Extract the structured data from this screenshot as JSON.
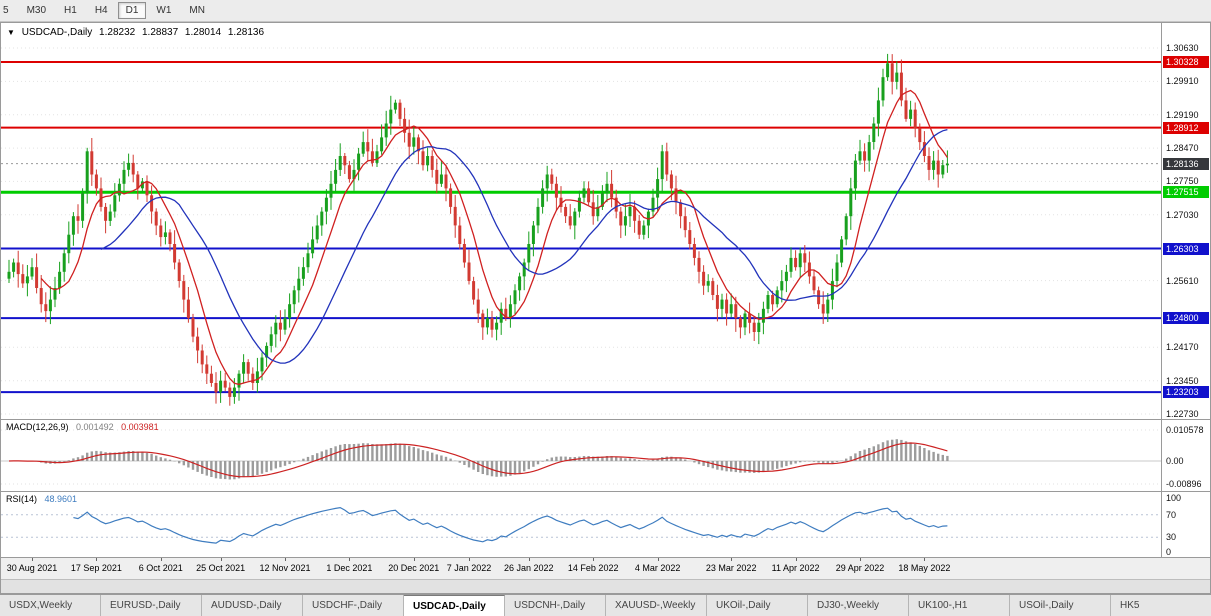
{
  "window": {
    "title_symbol": "USDCAD-,Daily",
    "open": "1.28232",
    "high": "1.28837",
    "low": "1.28014",
    "close": "1.28136"
  },
  "toolbar": {
    "timeframes": [
      "5",
      "M30",
      "H1",
      "H4",
      "D1",
      "W1",
      "MN"
    ],
    "active": "D1"
  },
  "tabs": {
    "items": [
      "USDX,Weekly",
      "EURUSD-,Daily",
      "AUDUSD-,Daily",
      "USDCHF-,Daily",
      "USDCAD-,Daily",
      "USDCNH-,Daily",
      "XAUUSD-,Weekly",
      "UKOil-,Daily",
      "DJ30-,Weekly",
      "UK100-,H1",
      "USOil-,Daily",
      "HK5"
    ],
    "selected_index": 4
  },
  "chart_data": {
    "type": "candlestick",
    "symbol": "USDCAD",
    "timeframe": "Daily",
    "x_labels": [
      "30 Aug 2021",
      "17 Sep 2021",
      "6 Oct 2021",
      "25 Oct 2021",
      "12 Nov 2021",
      "1 Dec 2021",
      "20 Dec 2021",
      "7 Jan 2022",
      "26 Jan 2022",
      "14 Feb 2022",
      "4 Mar 2022",
      "23 Mar 2022",
      "11 Apr 2022",
      "29 Apr 2022",
      "18 May 2022"
    ],
    "x_label_bars": [
      5,
      19,
      33,
      46,
      60,
      74,
      88,
      100,
      113,
      127,
      141,
      157,
      171,
      185,
      199
    ],
    "closes": [
      1.258,
      1.26,
      1.2575,
      1.2555,
      1.257,
      1.259,
      1.2545,
      1.251,
      1.2495,
      1.252,
      1.2545,
      1.258,
      1.262,
      1.266,
      1.27,
      1.269,
      1.275,
      1.284,
      1.279,
      1.276,
      1.272,
      1.269,
      1.271,
      1.2745,
      1.277,
      1.28,
      1.2815,
      1.279,
      1.276,
      1.2775,
      1.2745,
      1.271,
      1.268,
      1.2655,
      1.2665,
      1.264,
      1.26,
      1.256,
      1.252,
      1.248,
      1.244,
      1.241,
      1.238,
      1.236,
      1.234,
      1.232,
      1.2345,
      1.233,
      1.231,
      1.233,
      1.236,
      1.2385,
      1.236,
      1.234,
      1.2365,
      1.2395,
      1.242,
      1.2445,
      1.247,
      1.2455,
      1.248,
      1.251,
      1.254,
      1.2565,
      1.259,
      1.262,
      1.265,
      1.268,
      1.271,
      1.274,
      1.277,
      1.28,
      1.283,
      1.281,
      1.278,
      1.28,
      1.2835,
      1.286,
      1.284,
      1.2815,
      1.284,
      1.287,
      1.29,
      1.293,
      1.2945,
      1.291,
      1.288,
      1.285,
      1.287,
      1.284,
      1.281,
      1.283,
      1.28,
      1.277,
      1.279,
      1.276,
      1.272,
      1.268,
      1.264,
      1.26,
      1.256,
      1.252,
      1.249,
      1.246,
      1.248,
      1.2455,
      1.247,
      1.25,
      1.248,
      1.251,
      1.254,
      1.257,
      1.26,
      1.264,
      1.268,
      1.272,
      1.276,
      1.279,
      1.277,
      1.274,
      1.272,
      1.27,
      1.268,
      1.271,
      1.274,
      1.276,
      1.273,
      1.27,
      1.272,
      1.275,
      1.277,
      1.274,
      1.271,
      1.268,
      1.27,
      1.272,
      1.269,
      1.266,
      1.268,
      1.271,
      1.274,
      1.278,
      1.284,
      1.279,
      1.276,
      1.273,
      1.27,
      1.267,
      1.264,
      1.261,
      1.258,
      1.255,
      1.256,
      1.253,
      1.25,
      1.252,
      1.249,
      1.251,
      1.248,
      1.246,
      1.249,
      1.247,
      1.245,
      1.247,
      1.25,
      1.253,
      1.251,
      1.254,
      1.256,
      1.258,
      1.261,
      1.259,
      1.262,
      1.26,
      1.257,
      1.254,
      1.251,
      1.249,
      1.252,
      1.256,
      1.26,
      1.265,
      1.27,
      1.276,
      1.282,
      1.284,
      1.282,
      1.286,
      1.29,
      1.295,
      1.3,
      1.303,
      1.299,
      1.301,
      1.295,
      1.291,
      1.293,
      1.289,
      1.286,
      1.283,
      1.28,
      1.282,
      1.279,
      1.281,
      1.28136
    ],
    "y_axis": {
      "ticks": [
        "1.30630",
        "1.29910",
        "1.29190",
        "1.28470",
        "1.27750",
        "1.27030",
        "1.25610",
        "1.24170",
        "1.23450",
        "1.22730"
      ]
    },
    "levels": [
      {
        "label": "1.30328",
        "color": "#dd0000",
        "width": 2
      },
      {
        "label": "1.28912",
        "color": "#dd0000",
        "width": 2
      },
      {
        "label": "1.27515",
        "color": "#00cc00",
        "width": 3
      },
      {
        "label": "1.26303",
        "color": "#1111cc",
        "width": 2
      },
      {
        "label": "1.24800",
        "color": "#1111cc",
        "width": 2
      },
      {
        "label": "1.23203",
        "color": "#1111cc",
        "width": 2
      }
    ],
    "current_price": {
      "label": "1.28136",
      "badge_color": "#35373b"
    },
    "candle_colors": {
      "up": "#18a01e",
      "down": "#d23a32"
    },
    "moving_averages": [
      {
        "period": 8,
        "color": "#d02020"
      },
      {
        "period": 21,
        "color": "#2233bb"
      }
    ],
    "indicators": {
      "macd": {
        "name": "MACD(12,26,9)",
        "value_main": "0.001492",
        "value_signal": "0.003981",
        "axis_labels": [
          "0.010578",
          "0.00",
          "-0.00896"
        ],
        "histogram_color": "#9c9c9c",
        "signal_color": "#cc2222"
      },
      "rsi": {
        "name": "RSI(14)",
        "value": "48.9601",
        "axis_labels": [
          "100",
          "70",
          "30",
          "0"
        ],
        "levels": [
          70,
          30
        ],
        "line_color": "#3f7dc0"
      }
    }
  }
}
